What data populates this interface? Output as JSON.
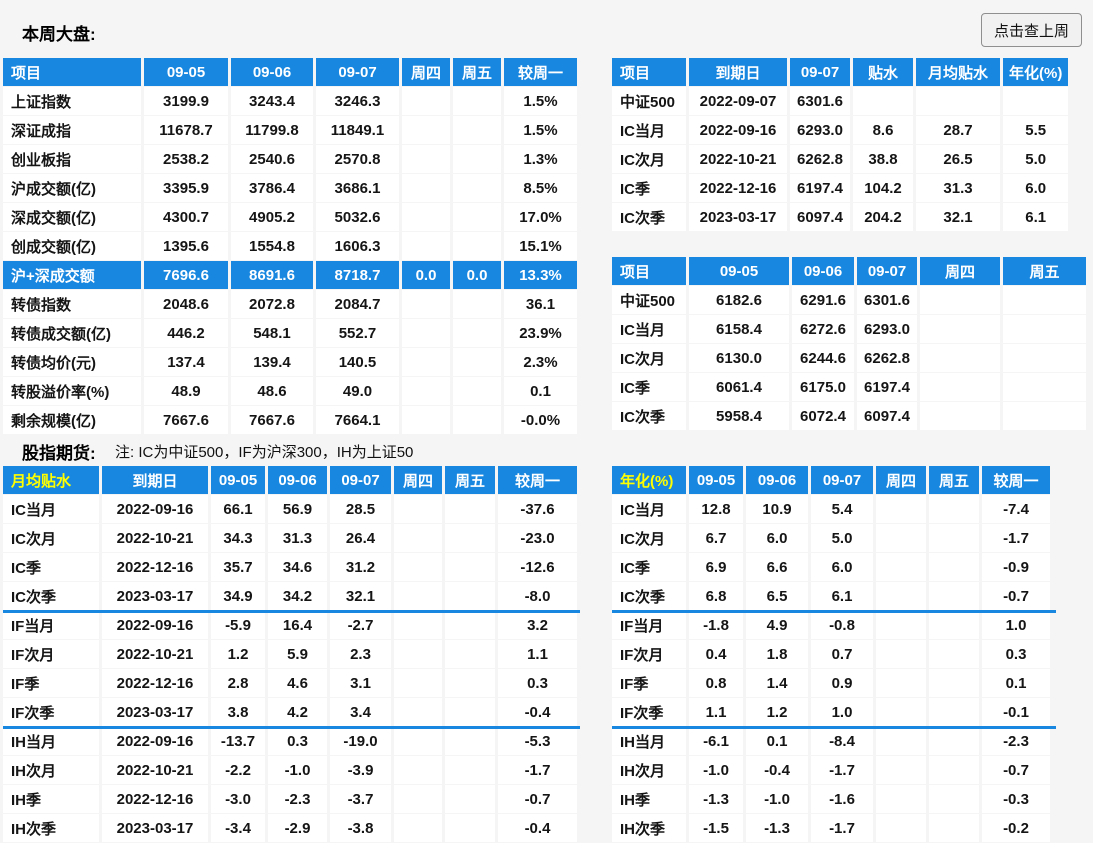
{
  "colors": {
    "header_blue": "#1787e0",
    "header_yellow": "#ffff00"
  },
  "page": {
    "title": "本周大盘:",
    "lastweek_button": "点击查上周",
    "futures_label": "股指期货:",
    "futures_note": "注: IC为中证500，IF为沪深300，IH为上证50"
  },
  "tables": {
    "market": {
      "headers": [
        "项目",
        "09-05",
        "09-06",
        "09-07",
        "周四",
        "周五",
        "较周一"
      ],
      "rows": [
        {
          "cells": [
            "上证指数",
            "3199.9",
            "3243.4",
            "3246.3",
            "",
            "",
            "1.5%"
          ]
        },
        {
          "cells": [
            "深证成指",
            "11678.7",
            "11799.8",
            "11849.1",
            "",
            "",
            "1.5%"
          ]
        },
        {
          "cells": [
            "创业板指",
            "2538.2",
            "2540.6",
            "2570.8",
            "",
            "",
            "1.3%"
          ]
        },
        {
          "cells": [
            "沪成交额(亿)",
            "3395.9",
            "3786.4",
            "3686.1",
            "",
            "",
            "8.5%"
          ]
        },
        {
          "cells": [
            "深成交额(亿)",
            "4300.7",
            "4905.2",
            "5032.6",
            "",
            "",
            "17.0%"
          ]
        },
        {
          "cells": [
            "创成交额(亿)",
            "1395.6",
            "1554.8",
            "1606.3",
            "",
            "",
            "15.1%"
          ]
        },
        {
          "cells": [
            "沪+深成交额",
            "7696.6",
            "8691.6",
            "8718.7",
            "0.0",
            "0.0",
            "13.3%"
          ],
          "highlight": true
        },
        {
          "cells": [
            "转债指数",
            "2048.6",
            "2072.8",
            "2084.7",
            "",
            "",
            "36.1"
          ]
        },
        {
          "cells": [
            "转债成交额(亿)",
            "446.2",
            "548.1",
            "552.7",
            "",
            "",
            "23.9%"
          ]
        },
        {
          "cells": [
            "转债均价(元)",
            "137.4",
            "139.4",
            "140.5",
            "",
            "",
            "2.3%"
          ]
        },
        {
          "cells": [
            "转股溢价率(%)",
            "48.9",
            "48.6",
            "49.0",
            "",
            "",
            "0.1"
          ]
        },
        {
          "cells": [
            "剩余规模(亿)",
            "7667.6",
            "7667.6",
            "7664.1",
            "",
            "",
            "-0.0%"
          ]
        }
      ]
    },
    "ic_basis": {
      "headers": [
        "项目",
        "到期日",
        "09-07",
        "贴水",
        "月均贴水",
        "年化(%)"
      ],
      "rows": [
        {
          "cells": [
            "中证500",
            "2022-09-07",
            "6301.6",
            "",
            "",
            ""
          ]
        },
        {
          "cells": [
            "IC当月",
            "2022-09-16",
            "6293.0",
            "8.6",
            "28.7",
            "5.5"
          ]
        },
        {
          "cells": [
            "IC次月",
            "2022-10-21",
            "6262.8",
            "38.8",
            "26.5",
            "5.0"
          ]
        },
        {
          "cells": [
            "IC季",
            "2022-12-16",
            "6197.4",
            "104.2",
            "31.3",
            "6.0"
          ]
        },
        {
          "cells": [
            "IC次季",
            "2023-03-17",
            "6097.4",
            "204.2",
            "32.1",
            "6.1"
          ]
        }
      ]
    },
    "ic_prices": {
      "headers": [
        "项目",
        "09-05",
        "09-06",
        "09-07",
        "周四",
        "周五"
      ],
      "rows": [
        {
          "cells": [
            "中证500",
            "6182.6",
            "6291.6",
            "6301.6",
            "",
            ""
          ]
        },
        {
          "cells": [
            "IC当月",
            "6158.4",
            "6272.6",
            "6293.0",
            "",
            ""
          ]
        },
        {
          "cells": [
            "IC次月",
            "6130.0",
            "6244.6",
            "6262.8",
            "",
            ""
          ]
        },
        {
          "cells": [
            "IC季",
            "6061.4",
            "6175.0",
            "6197.4",
            "",
            ""
          ]
        },
        {
          "cells": [
            "IC次季",
            "5958.4",
            "6072.4",
            "6097.4",
            "",
            ""
          ]
        }
      ]
    },
    "monthly_basis": {
      "first_header_yellow": true,
      "headers": [
        "月均贴水",
        "到期日",
        "09-05",
        "09-06",
        "09-07",
        "周四",
        "周五",
        "较周一"
      ],
      "rows": [
        {
          "cells": [
            "IC当月",
            "2022-09-16",
            "66.1",
            "56.9",
            "28.5",
            "",
            "",
            "-37.6"
          ]
        },
        {
          "cells": [
            "IC次月",
            "2022-10-21",
            "34.3",
            "31.3",
            "26.4",
            "",
            "",
            "-23.0"
          ]
        },
        {
          "cells": [
            "IC季",
            "2022-12-16",
            "35.7",
            "34.6",
            "31.2",
            "",
            "",
            "-12.6"
          ]
        },
        {
          "cells": [
            "IC次季",
            "2023-03-17",
            "34.9",
            "34.2",
            "32.1",
            "",
            "",
            "-8.0"
          ],
          "separator_after": true
        },
        {
          "cells": [
            "IF当月",
            "2022-09-16",
            "-5.9",
            "16.4",
            "-2.7",
            "",
            "",
            "3.2"
          ]
        },
        {
          "cells": [
            "IF次月",
            "2022-10-21",
            "1.2",
            "5.9",
            "2.3",
            "",
            "",
            "1.1"
          ]
        },
        {
          "cells": [
            "IF季",
            "2022-12-16",
            "2.8",
            "4.6",
            "3.1",
            "",
            "",
            "0.3"
          ]
        },
        {
          "cells": [
            "IF次季",
            "2023-03-17",
            "3.8",
            "4.2",
            "3.4",
            "",
            "",
            "-0.4"
          ],
          "separator_after": true
        },
        {
          "cells": [
            "IH当月",
            "2022-09-16",
            "-13.7",
            "0.3",
            "-19.0",
            "",
            "",
            "-5.3"
          ]
        },
        {
          "cells": [
            "IH次月",
            "2022-10-21",
            "-2.2",
            "-1.0",
            "-3.9",
            "",
            "",
            "-1.7"
          ]
        },
        {
          "cells": [
            "IH季",
            "2022-12-16",
            "-3.0",
            "-2.3",
            "-3.7",
            "",
            "",
            "-0.7"
          ]
        },
        {
          "cells": [
            "IH次季",
            "2023-03-17",
            "-3.4",
            "-2.9",
            "-3.8",
            "",
            "",
            "-0.4"
          ]
        }
      ]
    },
    "annualized": {
      "first_header_yellow": true,
      "headers": [
        "年化(%)",
        "09-05",
        "09-06",
        "09-07",
        "周四",
        "周五",
        "较周一"
      ],
      "rows": [
        {
          "cells": [
            "IC当月",
            "12.8",
            "10.9",
            "5.4",
            "",
            "",
            "-7.4"
          ]
        },
        {
          "cells": [
            "IC次月",
            "6.7",
            "6.0",
            "5.0",
            "",
            "",
            "-1.7"
          ]
        },
        {
          "cells": [
            "IC季",
            "6.9",
            "6.6",
            "6.0",
            "",
            "",
            "-0.9"
          ]
        },
        {
          "cells": [
            "IC次季",
            "6.8",
            "6.5",
            "6.1",
            "",
            "",
            "-0.7"
          ],
          "separator_after": true
        },
        {
          "cells": [
            "IF当月",
            "-1.8",
            "4.9",
            "-0.8",
            "",
            "",
            "1.0"
          ]
        },
        {
          "cells": [
            "IF次月",
            "0.4",
            "1.8",
            "0.7",
            "",
            "",
            "0.3"
          ]
        },
        {
          "cells": [
            "IF季",
            "0.8",
            "1.4",
            "0.9",
            "",
            "",
            "0.1"
          ]
        },
        {
          "cells": [
            "IF次季",
            "1.1",
            "1.2",
            "1.0",
            "",
            "",
            "-0.1"
          ],
          "separator_after": true
        },
        {
          "cells": [
            "IH当月",
            "-6.1",
            "0.1",
            "-8.4",
            "",
            "",
            "-2.3"
          ]
        },
        {
          "cells": [
            "IH次月",
            "-1.0",
            "-0.4",
            "-1.7",
            "",
            "",
            "-0.7"
          ]
        },
        {
          "cells": [
            "IH季",
            "-1.3",
            "-1.0",
            "-1.6",
            "",
            "",
            "-0.3"
          ]
        },
        {
          "cells": [
            "IH次季",
            "-1.5",
            "-1.3",
            "-1.7",
            "",
            "",
            "-0.2"
          ]
        }
      ]
    }
  }
}
